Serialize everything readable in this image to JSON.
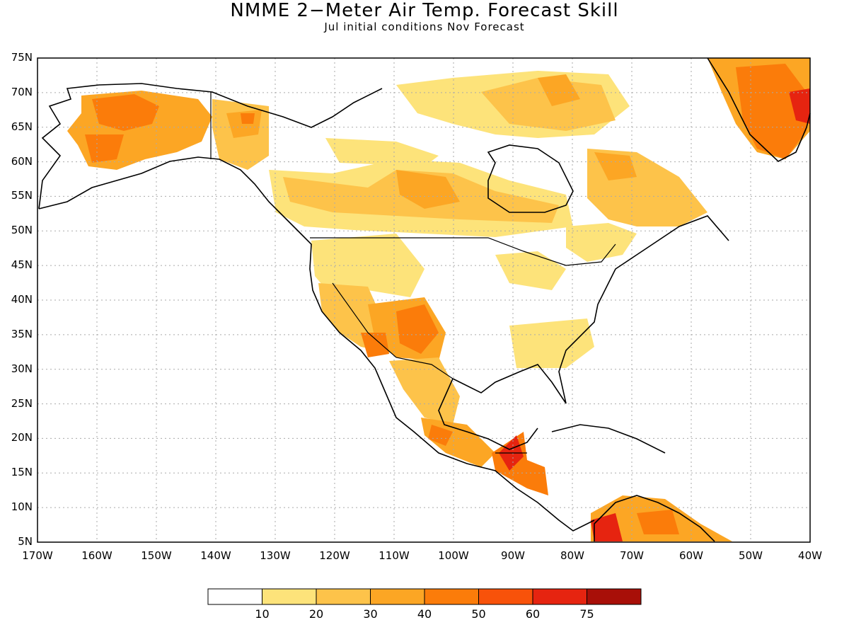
{
  "title": "NMME 2−Meter Air Temp. Forecast Skill",
  "subtitle": "Jul initial conditions   Nov Forecast",
  "lat_ticks": [
    "75N",
    "70N",
    "65N",
    "60N",
    "55N",
    "50N",
    "45N",
    "40N",
    "35N",
    "30N",
    "25N",
    "20N",
    "15N",
    "10N",
    "5N"
  ],
  "lon_ticks": [
    "170W",
    "160W",
    "150W",
    "140W",
    "130W",
    "120W",
    "110W",
    "100W",
    "90W",
    "80W",
    "70W",
    "60W",
    "50W",
    "40W"
  ],
  "colorbar": {
    "labels": [
      "10",
      "20",
      "30",
      "40",
      "50",
      "60",
      "75"
    ],
    "colors": [
      "#ffffff",
      "#fde37a",
      "#fdc34a",
      "#fca624",
      "#fb7c0a",
      "#f8520a",
      "#e62410",
      "#a80f08"
    ]
  },
  "colors": {
    "coast": "#000000",
    "grid": "#aaaaaa"
  }
}
